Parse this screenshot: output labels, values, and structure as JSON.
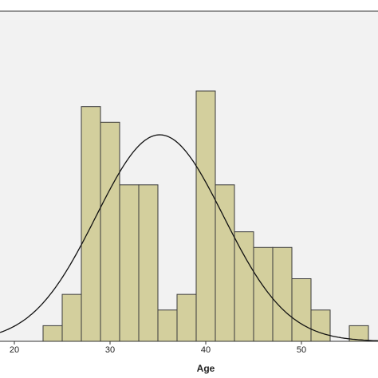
{
  "chart_data": {
    "type": "histogram",
    "x_label": "Age",
    "bins": [
      23,
      25,
      27,
      29,
      31,
      33,
      35,
      37,
      39,
      41,
      43,
      45,
      47,
      49,
      51,
      53,
      55,
      57
    ],
    "counts": [
      1,
      3,
      15,
      14,
      10,
      10,
      2,
      3,
      16,
      10,
      7,
      6,
      6,
      4,
      2,
      0,
      1
    ],
    "color": "#d3cf9d",
    "normal_curve": {
      "mean": 35.2,
      "sd": 6.65
    },
    "xlim": [
      18.5,
      58
    ],
    "xticks": [
      20,
      30,
      40,
      50
    ],
    "ylim": [
      0,
      21.1
    ]
  }
}
